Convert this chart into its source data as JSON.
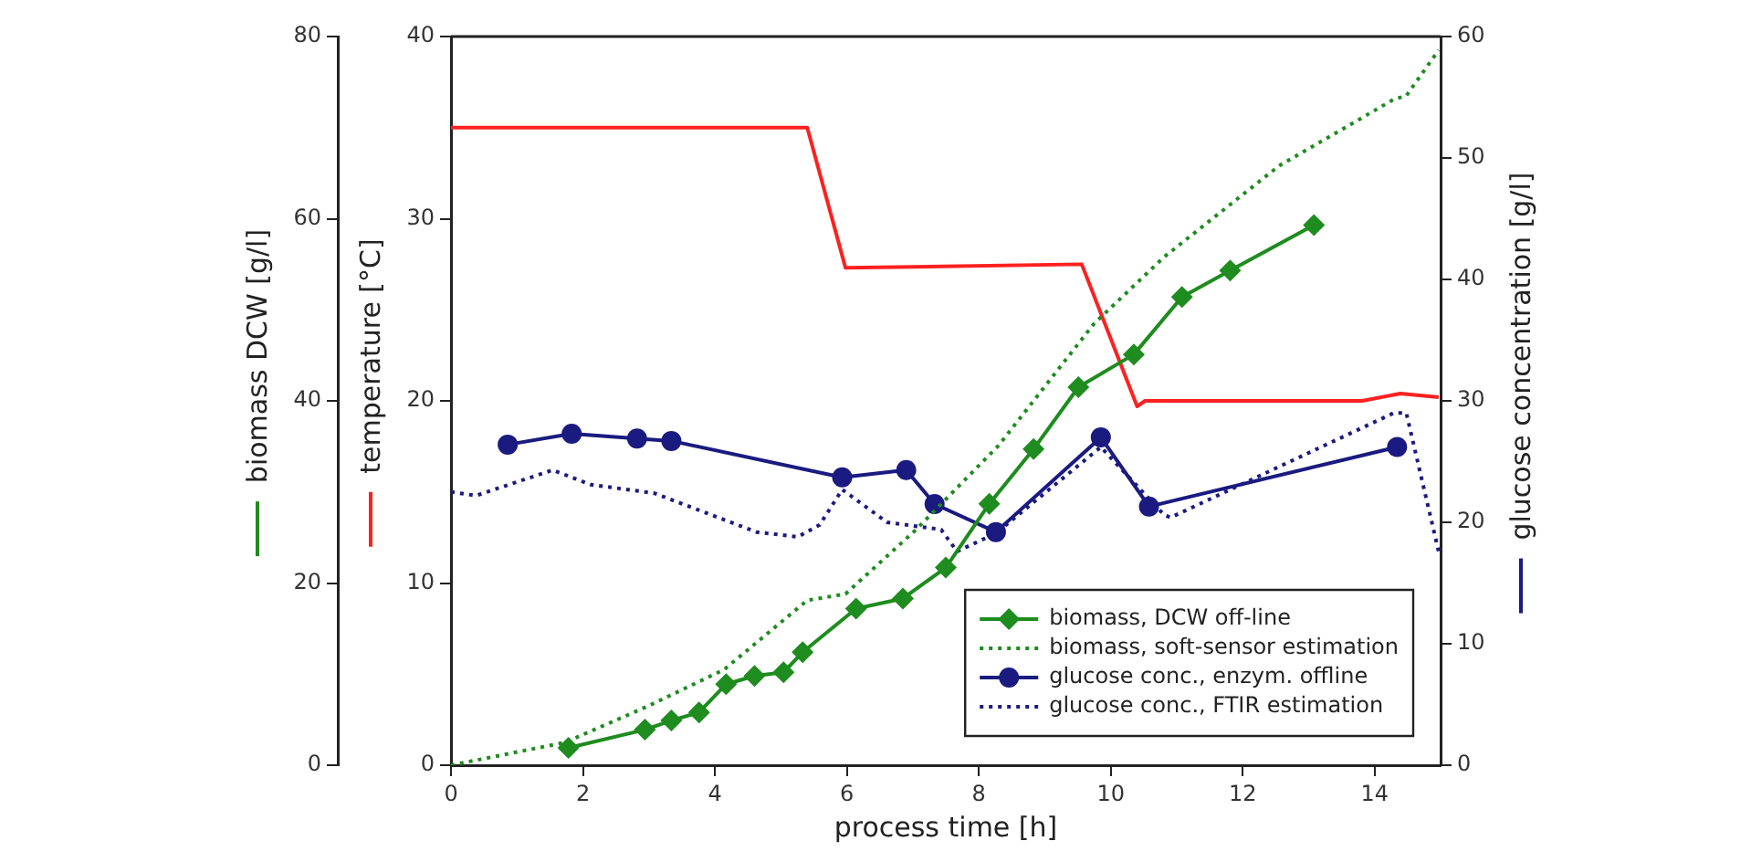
{
  "chart_data": {
    "type": "line",
    "xlabel": "process time [h]",
    "ylabel": "biomass DCW [g/l]",
    "y2label": "glucose concentration [g/l]",
    "y3label": "temperature [°C]",
    "xlim": [
      0,
      15
    ],
    "xticks": [
      0,
      2,
      4,
      6,
      8,
      10,
      12,
      14
    ],
    "ylim": [
      0,
      80
    ],
    "yticks": [
      0,
      20,
      40,
      60,
      80
    ],
    "y2lim": [
      0,
      60
    ],
    "y2ticks": [
      0,
      10,
      20,
      30,
      40,
      50,
      60
    ],
    "y3lim": [
      0,
      40
    ],
    "y3ticks": [
      0,
      10,
      20,
      30,
      40
    ],
    "grid": false,
    "legend": "bottom right",
    "series": [
      {
        "name": "biomass, DCW off-line",
        "color": "#1e8c1e",
        "marker": "diamond",
        "line_style": "solid",
        "x": [
          1.78,
          2.94,
          3.34,
          3.76,
          4.17,
          4.6,
          5.04,
          5.33,
          6.14,
          6.85,
          7.5,
          8.16,
          8.83,
          9.51,
          10.35,
          11.08,
          11.81,
          13.08
        ],
        "values": [
          1.9,
          3.9,
          4.9,
          5.8,
          8.9,
          9.8,
          10.2,
          12.4,
          17.2,
          18.3,
          21.7,
          28.7,
          34.7,
          41.5,
          45.1,
          51.4,
          54.3,
          59.3
        ]
      },
      {
        "name": "biomass, soft-sensor estimation",
        "color": "#1e8c1e",
        "marker": "none",
        "line_style": "dotted",
        "x": [
          0,
          1.73,
          2.99,
          4.14,
          5.4,
          5.98,
          7.04,
          8.3,
          9.75,
          10.81,
          12.55,
          14.29,
          14.48,
          14.97
        ],
        "values": [
          0,
          2.5,
          6.5,
          10.5,
          18.1,
          18.8,
          25.8,
          35.1,
          48.5,
          55.8,
          65.8,
          73.1,
          73.5,
          78.5
        ]
      },
      {
        "name": "glucose conc., enzym. offline",
        "color": "#1a1a80",
        "marker": "circle",
        "line_style": "solid",
        "axis": "y2",
        "x": [
          0.86,
          1.83,
          2.82,
          3.34,
          5.93,
          6.9,
          7.33,
          8.26,
          9.85,
          10.58,
          14.34
        ],
        "values": [
          26.4,
          27.3,
          26.9,
          26.7,
          23.7,
          24.3,
          21.5,
          19.2,
          27.0,
          21.3,
          26.2
        ]
      },
      {
        "name": "glucose conc., FTIR estimation",
        "color": "#1a1a80",
        "marker": "none",
        "line_style": "dotted",
        "axis": "y2",
        "x": [
          0,
          0.38,
          1.54,
          2.12,
          3.08,
          4.63,
          5.26,
          5.59,
          5.93,
          6.61,
          7.43,
          7.67,
          8.26,
          9.85,
          10.81,
          10.91,
          14.29,
          14.48,
          14.97
        ],
        "values": [
          22.5,
          22.2,
          24.3,
          23.1,
          22.4,
          19.2,
          18.8,
          19.8,
          22.7,
          20.0,
          19.4,
          17.6,
          19.1,
          26.2,
          20.6,
          20.4,
          29.0,
          29.0,
          17.6
        ]
      },
      {
        "color": "#ff2020",
        "marker": "none",
        "line_style": "solid",
        "axis": "y3",
        "x": [
          0,
          5.4,
          5.98,
          9.56,
          10.4,
          10.52,
          13.81,
          14.39,
          14.97
        ],
        "values": [
          35,
          35,
          27.3,
          27.5,
          19.7,
          20.0,
          20.0,
          20.4,
          20.2
        ]
      }
    ]
  }
}
